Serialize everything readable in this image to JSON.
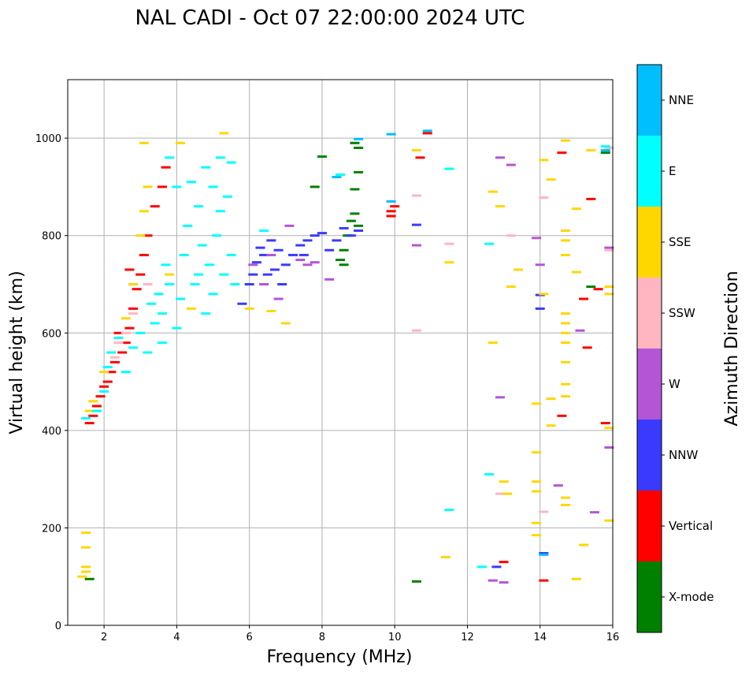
{
  "chart_data": {
    "type": "scatter",
    "title": "NAL CADI - Oct 07 22:00:00 2024 UTC",
    "xlabel": "Frequency (MHz)",
    "ylabel": "Virtual height (km)",
    "xlim": [
      1,
      16
    ],
    "ylim": [
      0,
      1120
    ],
    "xticks": [
      2,
      4,
      6,
      8,
      10,
      12,
      14,
      16
    ],
    "yticks": [
      0,
      200,
      400,
      600,
      800,
      1000
    ],
    "grid": true,
    "colorbar": {
      "title": "Azimuth Direction",
      "categories": [
        {
          "name": "X-mode",
          "color": "#008000"
        },
        {
          "name": "Vertical",
          "color": "#ff0000"
        },
        {
          "name": "NNW",
          "color": "#3a3aff"
        },
        {
          "name": "W",
          "color": "#b455d6"
        },
        {
          "name": "SSW",
          "color": "#ffb6c1"
        },
        {
          "name": "SSE",
          "color": "#ffd700"
        },
        {
          "name": "E",
          "color": "#00ffff"
        },
        {
          "name": "NNE",
          "color": "#00bfff"
        }
      ]
    },
    "series": [
      {
        "name": "X-mode",
        "points": [
          [
            1.6,
            95
          ],
          [
            8.0,
            962
          ],
          [
            7.8,
            900
          ],
          [
            8.5,
            750
          ],
          [
            8.6,
            770
          ],
          [
            8.7,
            800
          ],
          [
            8.8,
            830
          ],
          [
            8.9,
            845
          ],
          [
            9.0,
            820
          ],
          [
            9.0,
            980
          ],
          [
            8.9,
            990
          ],
          [
            9.0,
            930
          ],
          [
            8.9,
            895
          ],
          [
            10.6,
            90
          ],
          [
            15.8,
            970
          ],
          [
            15.4,
            695
          ],
          [
            8.6,
            740
          ]
        ]
      },
      {
        "name": "Vertical",
        "points": [
          [
            1.6,
            415
          ],
          [
            1.7,
            430
          ],
          [
            1.8,
            450
          ],
          [
            1.9,
            470
          ],
          [
            2.0,
            490
          ],
          [
            2.1,
            500
          ],
          [
            2.2,
            520
          ],
          [
            2.3,
            540
          ],
          [
            2.5,
            560
          ],
          [
            2.6,
            580
          ],
          [
            2.7,
            610
          ],
          [
            2.8,
            650
          ],
          [
            2.9,
            690
          ],
          [
            3.0,
            720
          ],
          [
            3.1,
            760
          ],
          [
            3.2,
            800
          ],
          [
            3.4,
            860
          ],
          [
            3.6,
            900
          ],
          [
            3.7,
            940
          ],
          [
            9.9,
            850
          ],
          [
            9.9,
            840
          ],
          [
            10.0,
            860
          ],
          [
            10.7,
            960
          ],
          [
            10.9,
            1010
          ],
          [
            13.0,
            130
          ],
          [
            14.1,
            92
          ],
          [
            14.6,
            430
          ],
          [
            14.6,
            970
          ],
          [
            15.2,
            670
          ],
          [
            15.3,
            570
          ],
          [
            15.4,
            875
          ],
          [
            15.8,
            415
          ],
          [
            15.6,
            690
          ],
          [
            2.4,
            600
          ],
          [
            2.7,
            730
          ]
        ]
      },
      {
        "name": "NNW",
        "points": [
          [
            5.8,
            660
          ],
          [
            6.0,
            700
          ],
          [
            6.1,
            720
          ],
          [
            6.2,
            745
          ],
          [
            6.4,
            760
          ],
          [
            6.5,
            720
          ],
          [
            6.6,
            790
          ],
          [
            6.7,
            730
          ],
          [
            6.8,
            770
          ],
          [
            7.0,
            740
          ],
          [
            7.2,
            760
          ],
          [
            7.4,
            780
          ],
          [
            7.6,
            790
          ],
          [
            7.8,
            800
          ],
          [
            8.0,
            805
          ],
          [
            8.2,
            770
          ],
          [
            8.4,
            790
          ],
          [
            8.6,
            815
          ],
          [
            8.8,
            800
          ],
          [
            9.0,
            810
          ],
          [
            10.6,
            822
          ],
          [
            14.0,
            650
          ],
          [
            14.0,
            678
          ],
          [
            14.1,
            148
          ],
          [
            12.8,
            120
          ],
          [
            6.3,
            775
          ],
          [
            6.9,
            700
          ],
          [
            7.5,
            760
          ]
        ]
      },
      {
        "name": "W",
        "points": [
          [
            6.4,
            700
          ],
          [
            6.6,
            760
          ],
          [
            7.1,
            820
          ],
          [
            7.4,
            750
          ],
          [
            7.6,
            740
          ],
          [
            7.8,
            745
          ],
          [
            8.2,
            710
          ],
          [
            10.6,
            780
          ],
          [
            12.9,
            960
          ],
          [
            13.2,
            945
          ],
          [
            12.9,
            468
          ],
          [
            13.0,
            88
          ],
          [
            12.7,
            92
          ],
          [
            13.9,
            795
          ],
          [
            14.0,
            740
          ],
          [
            14.5,
            287
          ],
          [
            15.1,
            605
          ],
          [
            15.5,
            232
          ],
          [
            15.9,
            775
          ],
          [
            15.9,
            365
          ],
          [
            6.1,
            740
          ],
          [
            6.8,
            670
          ]
        ]
      },
      {
        "name": "SSW",
        "points": [
          [
            2.3,
            550
          ],
          [
            2.4,
            580
          ],
          [
            2.6,
            600
          ],
          [
            2.8,
            640
          ],
          [
            10.6,
            605
          ],
          [
            10.6,
            882
          ],
          [
            11.5,
            783
          ],
          [
            12.9,
            270
          ],
          [
            13.2,
            800
          ],
          [
            14.1,
            878
          ],
          [
            14.1,
            233
          ],
          [
            15.9,
            980
          ],
          [
            15.9,
            770
          ],
          [
            3.2,
            700
          ]
        ]
      },
      {
        "name": "SSE",
        "points": [
          [
            1.4,
            100
          ],
          [
            1.5,
            120
          ],
          [
            1.5,
            160
          ],
          [
            1.5,
            190
          ],
          [
            1.5,
            110
          ],
          [
            1.6,
            440
          ],
          [
            1.7,
            460
          ],
          [
            2.0,
            520
          ],
          [
            2.6,
            630
          ],
          [
            2.8,
            700
          ],
          [
            3.0,
            800
          ],
          [
            3.1,
            850
          ],
          [
            3.2,
            900
          ],
          [
            3.1,
            990
          ],
          [
            4.1,
            990
          ],
          [
            5.3,
            1010
          ],
          [
            6.0,
            650
          ],
          [
            6.6,
            645
          ],
          [
            7.0,
            620
          ],
          [
            10.6,
            975
          ],
          [
            11.4,
            140
          ],
          [
            11.5,
            745
          ],
          [
            12.7,
            890
          ],
          [
            12.7,
            580
          ],
          [
            12.9,
            860
          ],
          [
            13.0,
            295
          ],
          [
            13.1,
            270
          ],
          [
            13.2,
            695
          ],
          [
            13.4,
            730
          ],
          [
            13.9,
            455
          ],
          [
            13.9,
            355
          ],
          [
            13.9,
            295
          ],
          [
            13.9,
            275
          ],
          [
            13.9,
            210
          ],
          [
            13.9,
            185
          ],
          [
            14.1,
            955
          ],
          [
            14.1,
            680
          ],
          [
            14.3,
            915
          ],
          [
            14.3,
            465
          ],
          [
            14.3,
            410
          ],
          [
            14.7,
            995
          ],
          [
            14.7,
            810
          ],
          [
            14.7,
            790
          ],
          [
            14.7,
            760
          ],
          [
            14.7,
            640
          ],
          [
            14.7,
            620
          ],
          [
            14.7,
            600
          ],
          [
            14.7,
            580
          ],
          [
            14.7,
            540
          ],
          [
            14.7,
            495
          ],
          [
            14.7,
            470
          ],
          [
            14.7,
            262
          ],
          [
            14.7,
            247
          ],
          [
            15.0,
            95
          ],
          [
            15.0,
            725
          ],
          [
            15.0,
            855
          ],
          [
            15.2,
            165
          ],
          [
            15.4,
            975
          ],
          [
            15.9,
            215
          ],
          [
            15.9,
            405
          ],
          [
            15.9,
            695
          ],
          [
            15.9,
            680
          ],
          [
            3.8,
            720
          ],
          [
            4.4,
            650
          ]
        ]
      },
      {
        "name": "E",
        "points": [
          [
            1.5,
            425
          ],
          [
            1.8,
            440
          ],
          [
            2.0,
            480
          ],
          [
            2.1,
            530
          ],
          [
            2.2,
            560
          ],
          [
            2.4,
            590
          ],
          [
            2.6,
            520
          ],
          [
            2.8,
            570
          ],
          [
            3.0,
            600
          ],
          [
            3.2,
            560
          ],
          [
            3.4,
            620
          ],
          [
            3.5,
            680
          ],
          [
            3.6,
            640
          ],
          [
            3.7,
            740
          ],
          [
            3.8,
            700
          ],
          [
            3.8,
            960
          ],
          [
            4.0,
            610
          ],
          [
            4.0,
            900
          ],
          [
            4.2,
            760
          ],
          [
            4.3,
            820
          ],
          [
            4.5,
            700
          ],
          [
            4.6,
            860
          ],
          [
            4.7,
            780
          ],
          [
            4.8,
            640
          ],
          [
            4.9,
            740
          ],
          [
            5.0,
            900
          ],
          [
            5.0,
            680
          ],
          [
            5.1,
            800
          ],
          [
            5.2,
            850
          ],
          [
            5.3,
            720
          ],
          [
            5.4,
            880
          ],
          [
            5.5,
            950
          ],
          [
            5.5,
            760
          ],
          [
            5.6,
            700
          ],
          [
            4.4,
            910
          ],
          [
            4.8,
            940
          ],
          [
            5.2,
            960
          ],
          [
            3.6,
            580
          ],
          [
            3.3,
            660
          ],
          [
            6.4,
            810
          ],
          [
            8.5,
            925
          ],
          [
            11.5,
            937
          ],
          [
            11.5,
            237
          ],
          [
            12.6,
            783
          ],
          [
            12.6,
            310
          ],
          [
            12.4,
            120
          ],
          [
            15.8,
            983
          ],
          [
            4.1,
            670
          ],
          [
            4.6,
            720
          ]
        ]
      },
      {
        "name": "NNE",
        "points": [
          [
            9.0,
            998
          ],
          [
            9.9,
            1008
          ],
          [
            10.9,
            1015
          ],
          [
            14.1,
            145
          ],
          [
            9.9,
            870
          ],
          [
            8.4,
            920
          ],
          [
            15.8,
            975
          ]
        ]
      }
    ]
  }
}
